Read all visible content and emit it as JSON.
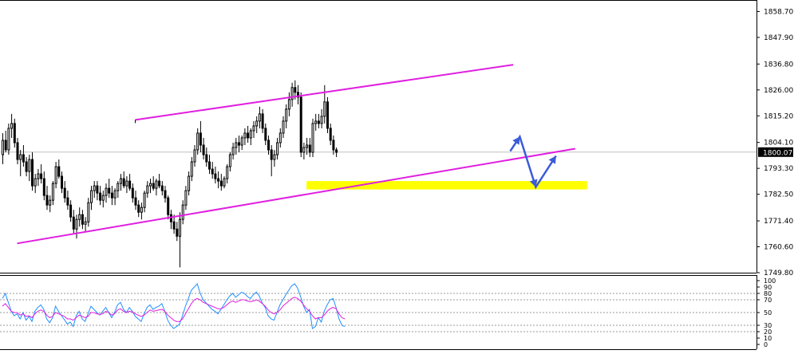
{
  "chart_data": [
    {
      "type": "candlestick",
      "title": "",
      "xlabel": "",
      "ylabel": "",
      "ylim": [
        1749.8,
        1863.5
      ],
      "price_ticks": [
        "1858.70",
        "1847.90",
        "1836.80",
        "1826.00",
        "1815.20",
        "1804.10",
        "1793.30",
        "1782.50",
        "1771.40",
        "1760.60",
        "1749.80"
      ],
      "current_price": "1800.07",
      "grid": false,
      "colors": {
        "candle": "#000000",
        "channel": "#e01ee0",
        "zone": "#ffff00",
        "arrow": "#3b5bd9",
        "current_line": "#c0c0c0"
      },
      "ohlc": [
        [
          1799.0,
          1808.0,
          1795.0,
          1805.0
        ],
        [
          1805.0,
          1809.0,
          1800.0,
          1801.0
        ],
        [
          1801.0,
          1812.0,
          1799.0,
          1810.0
        ],
        [
          1810.0,
          1816.0,
          1806.0,
          1812.0
        ],
        [
          1812.0,
          1814.0,
          1802.0,
          1804.0
        ],
        [
          1804.0,
          1806.0,
          1795.0,
          1797.0
        ],
        [
          1797.0,
          1801.0,
          1790.0,
          1799.0
        ],
        [
          1799.0,
          1803.0,
          1794.0,
          1796.0
        ],
        [
          1796.0,
          1798.0,
          1790.0,
          1792.0
        ],
        [
          1792.0,
          1799.0,
          1788.0,
          1797.0
        ],
        [
          1797.0,
          1800.0,
          1784.0,
          1786.0
        ],
        [
          1786.0,
          1791.0,
          1783.0,
          1789.0
        ],
        [
          1789.0,
          1793.0,
          1786.0,
          1791.0
        ],
        [
          1791.0,
          1795.0,
          1787.0,
          1789.0
        ],
        [
          1789.0,
          1792.0,
          1780.0,
          1782.0
        ],
        [
          1782.0,
          1786.0,
          1776.0,
          1778.0
        ],
        [
          1778.0,
          1782.0,
          1775.0,
          1780.0
        ],
        [
          1780.0,
          1788.0,
          1778.0,
          1787.0
        ],
        [
          1787.0,
          1796.0,
          1785.0,
          1794.0
        ],
        [
          1794.0,
          1797.0,
          1789.0,
          1790.0
        ],
        [
          1790.0,
          1792.0,
          1783.0,
          1785.0
        ],
        [
          1785.0,
          1788.0,
          1779.0,
          1781.0
        ],
        [
          1781.0,
          1784.0,
          1776.0,
          1778.0
        ],
        [
          1778.0,
          1780.0,
          1771.0,
          1773.0
        ],
        [
          1773.0,
          1776.0,
          1766.0,
          1768.0
        ],
        [
          1768.0,
          1774.0,
          1764.0,
          1772.0
        ],
        [
          1772.0,
          1777.0,
          1769.0,
          1774.0
        ],
        [
          1774.0,
          1776.0,
          1768.0,
          1770.0
        ],
        [
          1770.0,
          1773.0,
          1767.0,
          1771.0
        ],
        [
          1771.0,
          1781.0,
          1769.0,
          1779.0
        ],
        [
          1779.0,
          1786.0,
          1776.0,
          1784.0
        ],
        [
          1784.0,
          1788.0,
          1781.0,
          1786.0
        ],
        [
          1786.0,
          1788.0,
          1780.0,
          1783.0
        ],
        [
          1783.0,
          1786.0,
          1778.0,
          1780.0
        ],
        [
          1780.0,
          1784.0,
          1777.0,
          1782.0
        ],
        [
          1782.0,
          1787.0,
          1779.0,
          1785.0
        ],
        [
          1785.0,
          1789.0,
          1781.0,
          1783.0
        ],
        [
          1783.0,
          1786.0,
          1778.0,
          1781.0
        ],
        [
          1781.0,
          1785.0,
          1778.0,
          1784.0
        ],
        [
          1784.0,
          1788.0,
          1781.0,
          1787.0
        ],
        [
          1787.0,
          1791.0,
          1784.0,
          1789.0
        ],
        [
          1789.0,
          1792.0,
          1785.0,
          1786.0
        ],
        [
          1786.0,
          1790.0,
          1783.0,
          1788.0
        ],
        [
          1788.0,
          1791.0,
          1784.0,
          1785.0
        ],
        [
          1785.0,
          1787.0,
          1779.0,
          1781.0
        ],
        [
          1781.0,
          1784.0,
          1776.0,
          1778.0
        ],
        [
          1778.0,
          1780.0,
          1773.0,
          1775.0
        ],
        [
          1775.0,
          1779.0,
          1772.0,
          1777.0
        ],
        [
          1777.0,
          1784.0,
          1775.0,
          1783.0
        ],
        [
          1783.0,
          1788.0,
          1781.0,
          1786.0
        ],
        [
          1786.0,
          1789.0,
          1783.0,
          1787.0
        ],
        [
          1787.0,
          1790.0,
          1784.0,
          1785.0
        ],
        [
          1785.0,
          1789.0,
          1782.0,
          1788.0
        ],
        [
          1788.0,
          1791.0,
          1785.0,
          1786.0
        ],
        [
          1786.0,
          1788.0,
          1782.0,
          1784.0
        ],
        [
          1784.0,
          1786.0,
          1779.0,
          1781.0
        ],
        [
          1781.0,
          1782.0,
          1772.0,
          1774.0
        ],
        [
          1774.0,
          1776.0,
          1768.0,
          1771.0
        ],
        [
          1771.0,
          1774.0,
          1766.0,
          1768.0
        ],
        [
          1768.0,
          1771.0,
          1763.0,
          1765.0
        ],
        [
          1765.0,
          1775.0,
          1752.0,
          1772.0
        ],
        [
          1772.0,
          1780.0,
          1770.0,
          1778.0
        ],
        [
          1778.0,
          1786.0,
          1776.0,
          1784.0
        ],
        [
          1784.0,
          1792.0,
          1782.0,
          1790.0
        ],
        [
          1790.0,
          1798.0,
          1788.0,
          1796.0
        ],
        [
          1796.0,
          1803.0,
          1794.0,
          1801.0
        ],
        [
          1801.0,
          1810.0,
          1799.0,
          1808.0
        ],
        [
          1808.0,
          1813.0,
          1800.0,
          1803.0
        ],
        [
          1803.0,
          1806.0,
          1797.0,
          1799.0
        ],
        [
          1799.0,
          1802.0,
          1794.0,
          1796.0
        ],
        [
          1796.0,
          1799.0,
          1791.0,
          1793.0
        ],
        [
          1793.0,
          1796.0,
          1789.0,
          1791.0
        ],
        [
          1791.0,
          1794.0,
          1787.0,
          1789.0
        ],
        [
          1789.0,
          1792.0,
          1785.0,
          1788.0
        ],
        [
          1788.0,
          1791.0,
          1784.0,
          1786.0
        ],
        [
          1786.0,
          1790.0,
          1785.0,
          1789.0
        ],
        [
          1789.0,
          1795.0,
          1787.0,
          1794.0
        ],
        [
          1794.0,
          1800.0,
          1792.0,
          1799.0
        ],
        [
          1799.0,
          1804.0,
          1797.0,
          1802.0
        ],
        [
          1802.0,
          1806.0,
          1799.0,
          1804.0
        ],
        [
          1804.0,
          1807.0,
          1800.0,
          1803.0
        ],
        [
          1803.0,
          1807.0,
          1801.0,
          1806.0
        ],
        [
          1806.0,
          1810.0,
          1803.0,
          1808.0
        ],
        [
          1808.0,
          1811.0,
          1804.0,
          1806.0
        ],
        [
          1806.0,
          1810.0,
          1803.0,
          1809.0
        ],
        [
          1809.0,
          1813.0,
          1806.0,
          1811.0
        ],
        [
          1811.0,
          1815.0,
          1808.0,
          1813.0
        ],
        [
          1813.0,
          1819.0,
          1810.0,
          1816.0
        ],
        [
          1816.0,
          1818.0,
          1808.0,
          1810.0
        ],
        [
          1810.0,
          1812.0,
          1803.0,
          1805.0
        ],
        [
          1805.0,
          1807.0,
          1799.0,
          1801.0
        ],
        [
          1801.0,
          1803.0,
          1790.0,
          1797.0
        ],
        [
          1797.0,
          1801.0,
          1794.0,
          1799.0
        ],
        [
          1799.0,
          1806.0,
          1797.0,
          1804.0
        ],
        [
          1804.0,
          1810.0,
          1802.0,
          1808.0
        ],
        [
          1808.0,
          1815.0,
          1806.0,
          1813.0
        ],
        [
          1813.0,
          1820.0,
          1810.0,
          1818.0
        ],
        [
          1818.0,
          1825.0,
          1815.0,
          1822.0
        ],
        [
          1822.0,
          1829.0,
          1819.0,
          1827.0
        ],
        [
          1827.0,
          1830.0,
          1822.0,
          1825.0
        ],
        [
          1825.0,
          1828.0,
          1820.0,
          1823.0
        ],
        [
          1823.0,
          1825.0,
          1798.0,
          1800.0
        ],
        [
          1800.0,
          1804.0,
          1797.0,
          1802.0
        ],
        [
          1802.0,
          1806.0,
          1799.0,
          1803.0
        ],
        [
          1803.0,
          1806.0,
          1798.0,
          1800.0
        ],
        [
          1800.0,
          1814.0,
          1798.0,
          1812.0
        ],
        [
          1812.0,
          1816.0,
          1809.0,
          1813.0
        ],
        [
          1813.0,
          1816.0,
          1810.0,
          1812.0
        ],
        [
          1812.0,
          1818.0,
          1810.0,
          1815.0
        ],
        [
          1815.0,
          1828.0,
          1812.0,
          1821.0
        ],
        [
          1821.0,
          1823.0,
          1808.0,
          1810.0
        ],
        [
          1810.0,
          1812.0,
          1803.0,
          1805.0
        ],
        [
          1805.0,
          1807.0,
          1799.0,
          1801.0
        ],
        [
          1801.0,
          1802.0,
          1798.0,
          1800.0
        ]
      ],
      "annotations": {
        "channel_upper": [
          [
            45,
            1813.5
          ],
          [
            173,
            1836.5
          ]
        ],
        "channel_lower": [
          [
            5,
            1762.0
          ],
          [
            194,
            1801.5
          ]
        ],
        "support_zone": [
          1784.5,
          1788.0
        ],
        "support_zone_x": [
          103,
          198
        ],
        "arrow_x": [
          172,
          181
        ],
        "arrow_path": [
          1800.5,
          1806.5,
          1785.5,
          1798.5
        ]
      }
    },
    {
      "type": "line",
      "title": "",
      "xlabel": "",
      "ylabel": "",
      "ylim": [
        0,
        100
      ],
      "y_ticks": [
        "100",
        "90",
        "80",
        "70",
        "50",
        "30",
        "20",
        "10",
        "0"
      ],
      "levels": [
        80,
        70,
        50,
        30,
        20
      ],
      "series": [
        {
          "color": "#1e90ff",
          "values": [
            72,
            80,
            66,
            52,
            45,
            48,
            40,
            50,
            38,
            44,
            36,
            52,
            58,
            62,
            55,
            40,
            34,
            42,
            60,
            52,
            45,
            39,
            32,
            35,
            28,
            45,
            52,
            40,
            36,
            48,
            60,
            55,
            50,
            46,
            52,
            58,
            50,
            42,
            50,
            62,
            66,
            55,
            50,
            58,
            52,
            44,
            40,
            36,
            48,
            58,
            62,
            55,
            58,
            60,
            64,
            52,
            38,
            30,
            25,
            28,
            32,
            45,
            60,
            72,
            85,
            90,
            95,
            80,
            70,
            65,
            60,
            55,
            52,
            48,
            55,
            62,
            70,
            76,
            80,
            74,
            78,
            82,
            80,
            75,
            72,
            78,
            82,
            76,
            65,
            58,
            45,
            40,
            38,
            50,
            62,
            70,
            78,
            85,
            92,
            95,
            88,
            75,
            60,
            50,
            55,
            25,
            28,
            42,
            35,
            52,
            62,
            70,
            72,
            58,
            40,
            30,
            28
          ]
        },
        {
          "color": "#e01ee0",
          "values": [
            60,
            64,
            58,
            52,
            50,
            50,
            46,
            48,
            44,
            45,
            42,
            48,
            52,
            54,
            52,
            46,
            42,
            44,
            50,
            48,
            46,
            44,
            40,
            40,
            38,
            42,
            46,
            44,
            42,
            44,
            50,
            50,
            48,
            47,
            48,
            52,
            50,
            46,
            48,
            54,
            56,
            52,
            50,
            52,
            51,
            48,
            46,
            44,
            46,
            50,
            54,
            52,
            53,
            54,
            55,
            52,
            46,
            42,
            38,
            36,
            36,
            40,
            48,
            56,
            64,
            70,
            72,
            70,
            66,
            64,
            62,
            60,
            58,
            56,
            56,
            58,
            62,
            66,
            68,
            66,
            68,
            70,
            70,
            68,
            67,
            68,
            70,
            68,
            64,
            60,
            54,
            50,
            48,
            50,
            54,
            60,
            64,
            68,
            72,
            74,
            72,
            68,
            62,
            56,
            52,
            45,
            40,
            42,
            42,
            46,
            52,
            56,
            58,
            56,
            48,
            42,
            40
          ]
        }
      ]
    }
  ]
}
